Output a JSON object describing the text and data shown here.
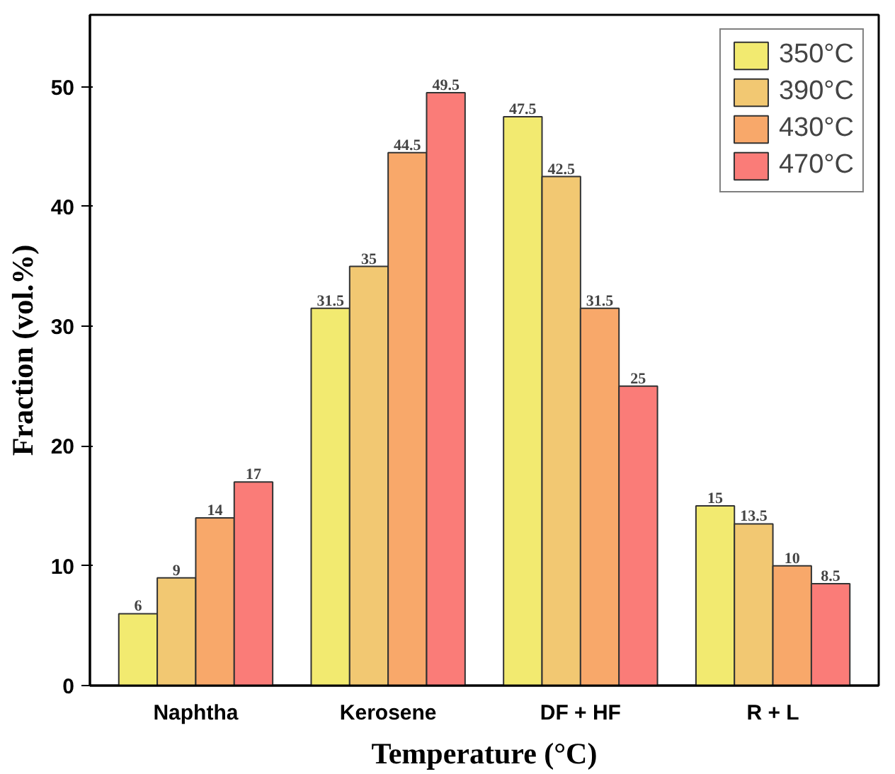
{
  "chart_data": {
    "type": "bar",
    "xlabel": "Temperature (°C)",
    "ylabel": "Fraction (vol.%)",
    "categories": [
      "Naphtha",
      "Kerosene",
      "DF + HF",
      "R + L"
    ],
    "series": [
      {
        "name": "350°C",
        "color": "#f2ea70",
        "values": [
          6,
          31.5,
          47.5,
          15
        ]
      },
      {
        "name": "390°C",
        "color": "#f2c872",
        "values": [
          9,
          35,
          42.5,
          13.5
        ]
      },
      {
        "name": "430°C",
        "color": "#f8a86a",
        "values": [
          14,
          44.5,
          31.5,
          10
        ]
      },
      {
        "name": "470°C",
        "color": "#fa7c78",
        "values": [
          17,
          49.5,
          25,
          8.5
        ]
      }
    ],
    "ylim": [
      0,
      56
    ],
    "yticks": [
      0,
      10,
      20,
      30,
      40,
      50
    ],
    "grid": false,
    "legend": "top right",
    "data_labels": true
  }
}
